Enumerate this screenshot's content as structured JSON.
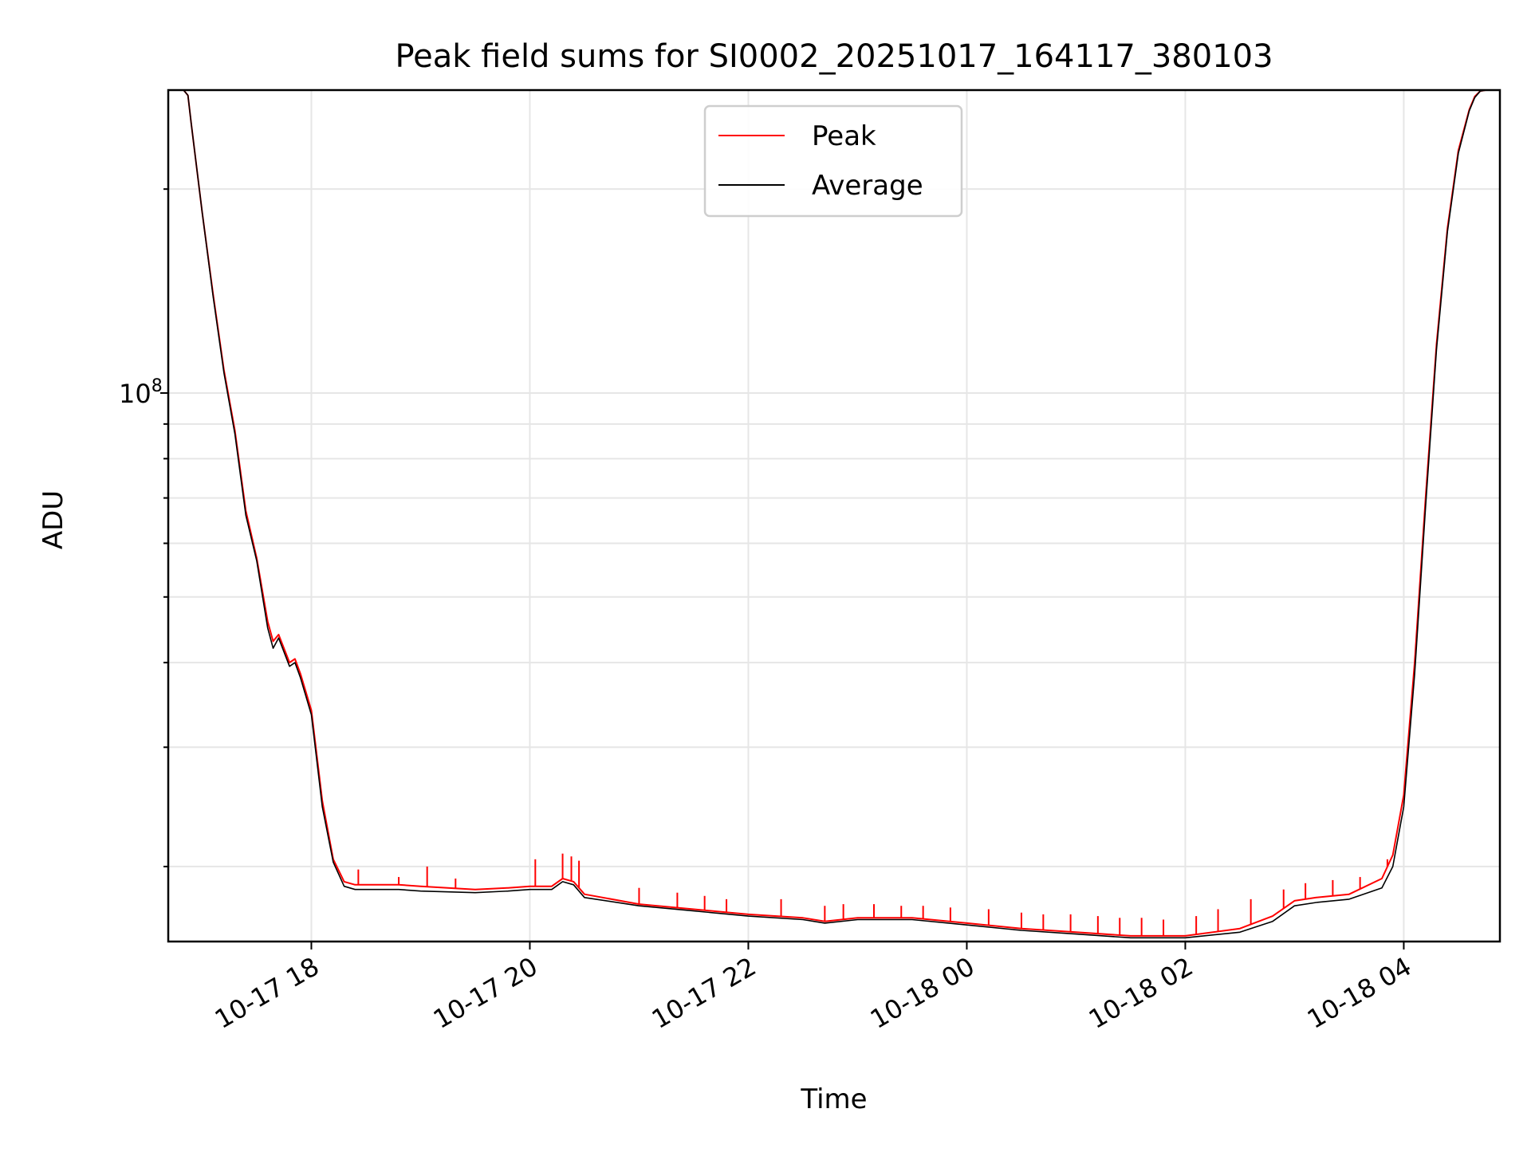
{
  "chart_data": {
    "type": "line",
    "title": "Peak field sums for SI0002_20251017_164117_380103",
    "xlabel": "Time",
    "ylabel": "ADU",
    "yscale": "log",
    "grid": true,
    "legend_position": "upper center",
    "x_unit": "hours since 2025-10-17 00:00",
    "xlim": [
      16.69,
      28.88
    ],
    "ylim": [
      15500000,
      280000000
    ],
    "x_ticks": [
      {
        "value": 18,
        "label": "10-17 18"
      },
      {
        "value": 20,
        "label": "10-17 20"
      },
      {
        "value": 22,
        "label": "10-17 22"
      },
      {
        "value": 24,
        "label": "10-18 00"
      },
      {
        "value": 26,
        "label": "10-18 02"
      },
      {
        "value": 28,
        "label": "10-18 04"
      }
    ],
    "y_major_ticks": [
      {
        "value": 100000000,
        "base": "10",
        "exp": "8"
      }
    ],
    "y_minor_ticks": [
      20000000,
      30000000,
      40000000,
      50000000,
      60000000,
      70000000,
      80000000,
      90000000,
      200000000
    ],
    "series": [
      {
        "name": "Peak",
        "color": "#ff0000",
        "x": [
          16.83,
          16.87,
          16.9,
          17.0,
          17.1,
          17.2,
          17.3,
          17.4,
          17.5,
          17.6,
          17.65,
          17.7,
          17.8,
          17.85,
          17.9,
          18.0,
          18.1,
          18.2,
          18.3,
          18.4,
          18.5,
          18.8,
          19.0,
          19.5,
          19.8,
          20.0,
          20.2,
          20.3,
          20.4,
          20.5,
          21.0,
          21.5,
          22.0,
          22.5,
          22.7,
          23.0,
          23.5,
          24.0,
          24.5,
          25.0,
          25.5,
          26.0,
          26.5,
          26.8,
          27.0,
          27.2,
          27.5,
          27.8,
          27.9,
          28.0,
          28.1,
          28.2,
          28.3,
          28.4,
          28.5,
          28.6,
          28.65,
          28.7,
          28.75
        ],
        "y": [
          280000000,
          275000000,
          250000000,
          185000000,
          140000000,
          108000000,
          88000000,
          67000000,
          57000000,
          46000000,
          43000000,
          44000000,
          40000000,
          40500000,
          38500000,
          34000000,
          25000000,
          20500000,
          19000000,
          18800000,
          18800000,
          18800000,
          18700000,
          18500000,
          18600000,
          18700000,
          18700000,
          19200000,
          19000000,
          18200000,
          17600000,
          17300000,
          17000000,
          16800000,
          16600000,
          16800000,
          16800000,
          16500000,
          16200000,
          16000000,
          15800000,
          15800000,
          16200000,
          16900000,
          17800000,
          18000000,
          18200000,
          19200000,
          20800000,
          25500000,
          40000000,
          70000000,
          118000000,
          175000000,
          228000000,
          262000000,
          274000000,
          279000000,
          280000000
        ],
        "spikes": [
          {
            "x": 18.43,
            "y": 19800000
          },
          {
            "x": 18.8,
            "y": 19300000
          },
          {
            "x": 19.06,
            "y": 20000000
          },
          {
            "x": 19.32,
            "y": 19200000
          },
          {
            "x": 20.05,
            "y": 20500000
          },
          {
            "x": 20.3,
            "y": 20900000
          },
          {
            "x": 20.38,
            "y": 20700000
          },
          {
            "x": 20.45,
            "y": 20400000
          },
          {
            "x": 21.0,
            "y": 18600000
          },
          {
            "x": 21.35,
            "y": 18300000
          },
          {
            "x": 21.6,
            "y": 18100000
          },
          {
            "x": 21.8,
            "y": 17900000
          },
          {
            "x": 22.3,
            "y": 17900000
          },
          {
            "x": 22.7,
            "y": 17500000
          },
          {
            "x": 22.87,
            "y": 17600000
          },
          {
            "x": 23.15,
            "y": 17600000
          },
          {
            "x": 23.4,
            "y": 17500000
          },
          {
            "x": 23.6,
            "y": 17500000
          },
          {
            "x": 23.85,
            "y": 17400000
          },
          {
            "x": 24.2,
            "y": 17300000
          },
          {
            "x": 24.5,
            "y": 17100000
          },
          {
            "x": 24.7,
            "y": 17000000
          },
          {
            "x": 24.95,
            "y": 17000000
          },
          {
            "x": 25.2,
            "y": 16900000
          },
          {
            "x": 25.4,
            "y": 16800000
          },
          {
            "x": 25.6,
            "y": 16800000
          },
          {
            "x": 25.8,
            "y": 16700000
          },
          {
            "x": 26.1,
            "y": 16900000
          },
          {
            "x": 26.3,
            "y": 17300000
          },
          {
            "x": 26.6,
            "y": 17900000
          },
          {
            "x": 26.9,
            "y": 18500000
          },
          {
            "x": 27.1,
            "y": 18900000
          },
          {
            "x": 27.35,
            "y": 19100000
          },
          {
            "x": 27.6,
            "y": 19300000
          },
          {
            "x": 27.85,
            "y": 20500000
          }
        ]
      },
      {
        "name": "Average",
        "color": "#000000",
        "x": [
          16.83,
          16.87,
          16.9,
          17.0,
          17.1,
          17.2,
          17.3,
          17.4,
          17.5,
          17.6,
          17.65,
          17.7,
          17.8,
          17.85,
          17.9,
          18.0,
          18.1,
          18.2,
          18.3,
          18.4,
          18.5,
          18.8,
          19.0,
          19.5,
          19.8,
          20.0,
          20.2,
          20.3,
          20.4,
          20.5,
          21.0,
          21.5,
          22.0,
          22.5,
          22.7,
          23.0,
          23.5,
          24.0,
          24.5,
          25.0,
          25.5,
          26.0,
          26.5,
          26.8,
          27.0,
          27.2,
          27.5,
          27.8,
          27.9,
          28.0,
          28.1,
          28.2,
          28.3,
          28.4,
          28.5,
          28.6,
          28.65,
          28.7,
          28.75
        ],
        "y": [
          280000000,
          275000000,
          250000000,
          185000000,
          139000000,
          107000000,
          87000000,
          66000000,
          56500000,
          45000000,
          42000000,
          43500000,
          39500000,
          40000000,
          38000000,
          33500000,
          24500000,
          20300000,
          18700000,
          18500000,
          18500000,
          18500000,
          18400000,
          18300000,
          18400000,
          18500000,
          18500000,
          19000000,
          18800000,
          18000000,
          17500000,
          17200000,
          16900000,
          16700000,
          16500000,
          16700000,
          16700000,
          16400000,
          16100000,
          15900000,
          15700000,
          15700000,
          16000000,
          16600000,
          17500000,
          17700000,
          17900000,
          18600000,
          20000000,
          24500000,
          38500000,
          68000000,
          116000000,
          173000000,
          226000000,
          261000000,
          273000000,
          279000000,
          280000000
        ]
      }
    ]
  }
}
